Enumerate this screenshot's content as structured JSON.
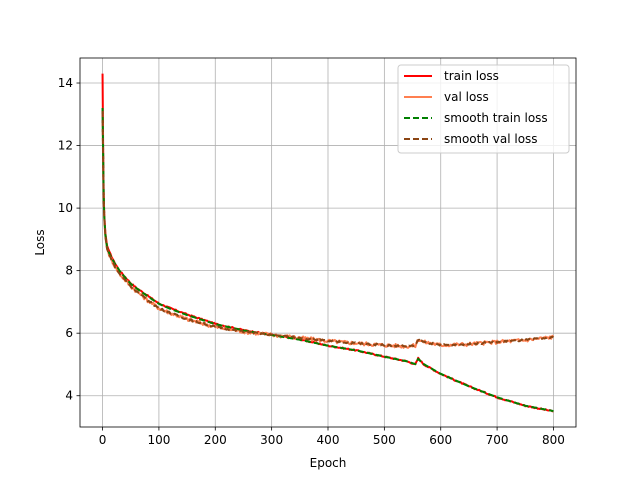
{
  "chart_data": {
    "type": "line",
    "title": "",
    "xlabel": "Epoch",
    "ylabel": "Loss",
    "xlim": [
      -40,
      840
    ],
    "ylim": [
      3.0,
      14.8
    ],
    "xticks": [
      0,
      100,
      200,
      300,
      400,
      500,
      600,
      700,
      800
    ],
    "yticks": [
      4,
      6,
      8,
      10,
      12,
      14
    ],
    "grid": true,
    "legend_position": "top-right",
    "series": [
      {
        "name": "train loss",
        "color": "#ff0000",
        "style": "solid",
        "x": [
          0,
          1,
          2,
          3,
          5,
          8,
          12,
          20,
          30,
          40,
          50,
          60,
          80,
          100,
          120,
          150,
          200,
          250,
          300,
          350,
          400,
          450,
          500,
          540,
          555,
          560,
          570,
          600,
          650,
          700,
          750,
          800
        ],
        "y": [
          14.3,
          12.0,
          10.5,
          9.8,
          9.2,
          8.8,
          8.6,
          8.3,
          8.0,
          7.8,
          7.6,
          7.45,
          7.2,
          6.95,
          6.8,
          6.6,
          6.3,
          6.1,
          5.95,
          5.8,
          5.6,
          5.45,
          5.25,
          5.1,
          5.0,
          5.2,
          5.0,
          4.7,
          4.3,
          3.95,
          3.68,
          3.5
        ]
      },
      {
        "name": "val loss",
        "color": "#ff7f50",
        "style": "solid",
        "x": [
          0,
          1,
          2,
          3,
          5,
          8,
          12,
          20,
          30,
          40,
          50,
          60,
          80,
          100,
          120,
          150,
          200,
          250,
          300,
          350,
          400,
          450,
          500,
          540,
          555,
          560,
          570,
          600,
          650,
          700,
          750,
          800
        ],
        "y": [
          13.2,
          11.6,
          10.3,
          9.7,
          9.1,
          8.7,
          8.5,
          8.2,
          7.9,
          7.7,
          7.5,
          7.35,
          7.05,
          6.8,
          6.65,
          6.45,
          6.2,
          6.05,
          5.95,
          5.85,
          5.75,
          5.68,
          5.62,
          5.58,
          5.6,
          5.8,
          5.72,
          5.62,
          5.65,
          5.72,
          5.78,
          5.88
        ]
      },
      {
        "name": "smooth train loss",
        "color": "#008000",
        "style": "dashed",
        "x": [
          0,
          1,
          2,
          3,
          5,
          8,
          12,
          20,
          30,
          40,
          50,
          60,
          80,
          100,
          120,
          150,
          200,
          250,
          300,
          350,
          400,
          450,
          500,
          540,
          555,
          560,
          570,
          600,
          650,
          700,
          750,
          800
        ],
        "y": [
          13.2,
          11.8,
          10.4,
          9.75,
          9.15,
          8.75,
          8.55,
          8.28,
          8.0,
          7.78,
          7.58,
          7.44,
          7.18,
          6.94,
          6.78,
          6.58,
          6.29,
          6.09,
          5.94,
          5.79,
          5.6,
          5.45,
          5.25,
          5.1,
          5.01,
          5.18,
          5.01,
          4.7,
          4.3,
          3.95,
          3.68,
          3.51
        ]
      },
      {
        "name": "smooth val loss",
        "color": "#8b4513",
        "style": "dashed",
        "x": [
          0,
          1,
          2,
          3,
          5,
          8,
          12,
          20,
          30,
          40,
          50,
          60,
          80,
          100,
          120,
          150,
          200,
          250,
          300,
          350,
          400,
          450,
          500,
          540,
          555,
          560,
          570,
          600,
          650,
          700,
          750,
          800
        ],
        "y": [
          13.1,
          11.5,
          10.3,
          9.7,
          9.1,
          8.7,
          8.5,
          8.2,
          7.9,
          7.7,
          7.5,
          7.35,
          7.05,
          6.8,
          6.65,
          6.45,
          6.2,
          6.05,
          5.95,
          5.85,
          5.75,
          5.68,
          5.62,
          5.58,
          5.6,
          5.78,
          5.72,
          5.62,
          5.65,
          5.72,
          5.78,
          5.87
        ]
      }
    ]
  }
}
